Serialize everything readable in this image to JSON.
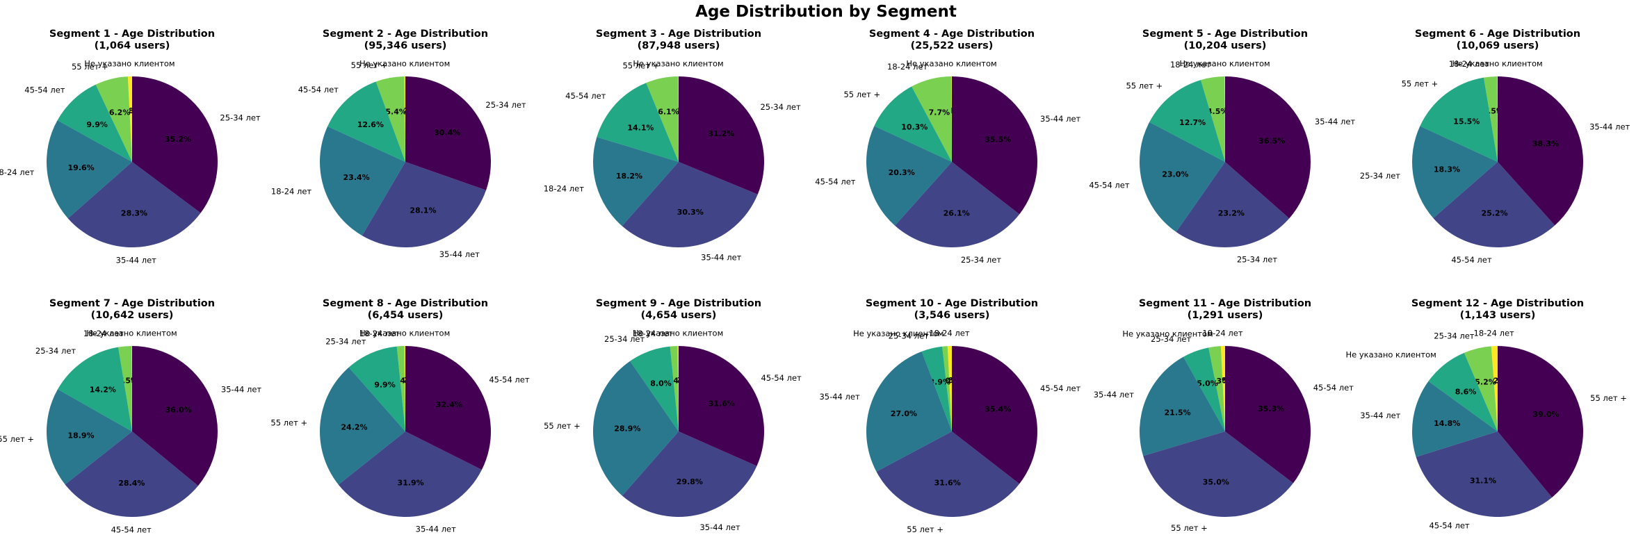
{
  "figure_title": "Age Distribution by Segment",
  "colors": {
    "Не указано клиентом": "#fde725",
    "18-24 лет": "#7ad151",
    "25-34 лет": "#7ad151",
    "55 лет +": "#7ad151",
    "second": "#22a884",
    "third": "#2a788e",
    "fourth": "#414487",
    "fifth": "#440154"
  },
  "chart_data": [
    {
      "type": "pie",
      "title": "Segment 1 - Age Distribution",
      "subtitle": "(1,064 users)",
      "labels": [
        "Не указано клиентом",
        "55 лет +",
        "45-54 лет",
        "18-24 лет",
        "35-44 лет",
        "25-34 лет"
      ],
      "values": [
        0.8,
        6.2,
        9.9,
        19.6,
        28.3,
        35.2
      ],
      "pct_labels": [
        "0.8%",
        "6.2%",
        "9.9%",
        "19.6%",
        "28.3%",
        "35.2%"
      ]
    },
    {
      "type": "pie",
      "title": "Segment 2 - Age Distribution",
      "subtitle": "(95,346 users)",
      "labels": [
        "Не указано клиентом",
        "55 лет +",
        "45-54 лет",
        "18-24 лет",
        "35-44 лет",
        "25-34 лет"
      ],
      "values": [
        0.2,
        5.4,
        12.6,
        23.4,
        28.1,
        30.4
      ],
      "pct_labels": [
        "0.2%",
        "5.4%",
        "12.6%",
        "23.4%",
        "28.1%",
        "30.4%"
      ]
    },
    {
      "type": "pie",
      "title": "Segment 3 - Age Distribution",
      "subtitle": "(87,948 users)",
      "labels": [
        "Не указано клиентом",
        "55 лет +",
        "45-54 лет",
        "18-24 лет",
        "35-44 лет",
        "25-34 лет"
      ],
      "values": [
        0.1,
        6.1,
        14.1,
        18.2,
        30.3,
        31.2
      ],
      "pct_labels": [
        "0.1%",
        "6.1%",
        "14.1%",
        "18.2%",
        "30.3%",
        "31.2%"
      ]
    },
    {
      "type": "pie",
      "title": "Segment 4 - Age Distribution",
      "subtitle": "(25,522 users)",
      "labels": [
        "Не указано клиентом",
        "18-24 лет",
        "55 лет +",
        "45-54 лет",
        "25-34 лет",
        "35-44 лет"
      ],
      "values": [
        0.1,
        7.7,
        10.3,
        20.3,
        26.1,
        35.5
      ],
      "pct_labels": [
        "0.1%",
        "7.7%",
        "10.3%",
        "20.3%",
        "26.1%",
        "35.5%"
      ]
    },
    {
      "type": "pie",
      "title": "Segment 5 - Age Distribution",
      "subtitle": "(10,204 users)",
      "labels": [
        "Не указано клиентом",
        "18-24 лет",
        "55 лет +",
        "45-54 лет",
        "25-34 лет",
        "35-44 лет"
      ],
      "values": [
        0.1,
        4.5,
        12.7,
        23.0,
        23.2,
        36.5
      ],
      "pct_labels": [
        "0.1%",
        "4.5%",
        "12.7%",
        "23.0%",
        "23.2%",
        "36.5%"
      ]
    },
    {
      "type": "pie",
      "title": "Segment 6 - Age Distribution",
      "subtitle": "(10,069 users)",
      "labels": [
        "Не указано клиентом",
        "18-24 лет",
        "55 лет +",
        "25-34 лет",
        "45-54 лет",
        "35-44 лет"
      ],
      "values": [
        0.1,
        2.5,
        15.5,
        18.3,
        25.2,
        38.3
      ],
      "pct_labels": [
        "0.1%",
        "2.5%",
        "15.5%",
        "18.3%",
        "25.2%",
        "38.3%"
      ]
    },
    {
      "type": "pie",
      "title": "Segment 7 - Age Distribution",
      "subtitle": "(10,642 users)",
      "labels": [
        "Не указано клиентом",
        "18-24 лет",
        "25-34 лет",
        "55 лет +",
        "45-54 лет",
        "35-44 лет"
      ],
      "values": [
        0.1,
        2.5,
        14.2,
        18.9,
        28.4,
        36.0
      ],
      "pct_labels": [
        "0.1%",
        "2.5%",
        "14.2%",
        "18.9%",
        "28.4%",
        "36.0%"
      ]
    },
    {
      "type": "pie",
      "title": "Segment 8 - Age Distribution",
      "subtitle": "(6,454 users)",
      "labels": [
        "Не указано клиентом",
        "18-24 лет",
        "25-34 лет",
        "55 лет +",
        "35-44 лет",
        "45-54 лет"
      ],
      "values": [
        0.2,
        1.4,
        9.9,
        24.2,
        31.9,
        32.4
      ],
      "pct_labels": [
        "0.2%",
        "1.4%",
        "9.9%",
        "24.2%",
        "31.9%",
        "32.4%"
      ]
    },
    {
      "type": "pie",
      "title": "Segment 9 - Age Distribution",
      "subtitle": "(4,654 users)",
      "labels": [
        "Не указано клиентом",
        "18-24 лет",
        "25-34 лет",
        "55 лет +",
        "35-44 лет",
        "45-54 лет"
      ],
      "values": [
        0.2,
        1.4,
        8.0,
        28.9,
        29.8,
        31.6
      ],
      "pct_labels": [
        "0.2%",
        "1.4%",
        "8.0%",
        "28.9%",
        "29.8%",
        "31.6%"
      ]
    },
    {
      "type": "pie",
      "title": "Segment 10 - Age Distribution",
      "subtitle": "(3,546 users)",
      "labels": [
        "18-24 лет",
        "Не указано клиентом",
        "25-34 лет",
        "35-44 лет",
        "55 лет +",
        "45-54 лет"
      ],
      "values": [
        0.8,
        1.0,
        3.9,
        27.0,
        31.6,
        35.4
      ],
      "pct_labels": [
        "0.8%",
        "1.0%",
        "3.9%",
        "27.0%",
        "31.6%",
        "35.4%"
      ]
    },
    {
      "type": "pie",
      "title": "Segment 11 - Age Distribution",
      "subtitle": "(1,291 users)",
      "labels": [
        "18-24 лет",
        "Не указано клиентом",
        "25-34 лет",
        "35-44 лет",
        "55 лет +",
        "45-54 лет"
      ],
      "values": [
        0.8,
        2.3,
        5.0,
        21.5,
        35.0,
        35.3
      ],
      "pct_labels": [
        "0.8%",
        "2.3%",
        "5.0%",
        "21.5%",
        "35.0%",
        "35.3%"
      ]
    },
    {
      "type": "pie",
      "title": "Segment 12 - Age Distribution",
      "subtitle": "(1,143 users)",
      "labels": [
        "18-24 лет",
        "25-34 лет",
        "Не указано клиентом",
        "35-44 лет",
        "45-54 лет",
        "55 лет +"
      ],
      "values": [
        1.2,
        5.2,
        8.6,
        14.8,
        31.1,
        39.0
      ],
      "pct_labels": [
        "1.2%",
        "5.2%",
        "8.6%",
        "14.8%",
        "31.1%",
        "39.0%"
      ]
    }
  ]
}
